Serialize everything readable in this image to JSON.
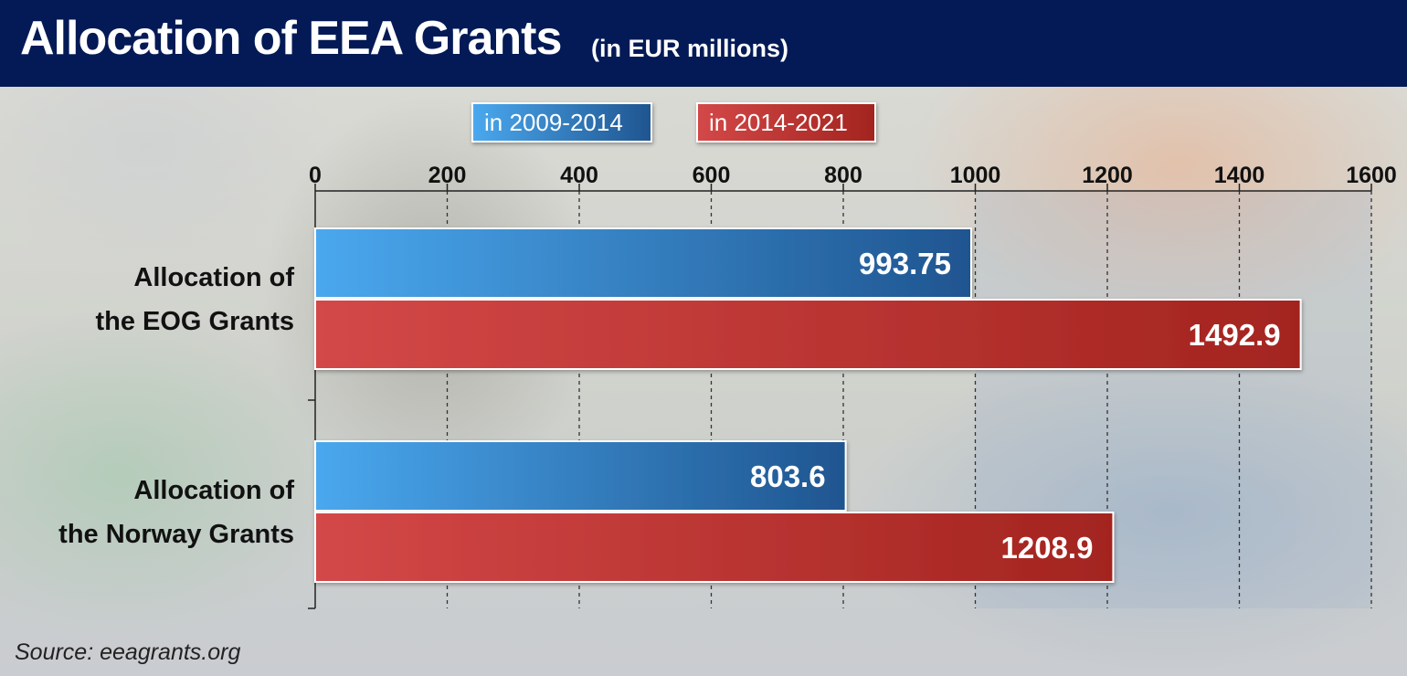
{
  "header": {
    "title": "Allocation of EEA Grants",
    "subtitle": "(in EUR millions)"
  },
  "source": "Source: eeagrants.org",
  "colors": {
    "header_bg": "#031a56",
    "series_2009_start": "#4aa8ee",
    "series_2009_end": "#1f5590",
    "series_2014_start": "#d34848",
    "series_2014_end": "#a3241f"
  },
  "chart_data": {
    "type": "bar",
    "orientation": "horizontal",
    "categories": [
      [
        "Allocation of",
        "the EOG Grants"
      ],
      [
        "Allocation of",
        "the Norway Grants"
      ]
    ],
    "series": [
      {
        "name": "in 2009-2014",
        "values": [
          993.75,
          803.6
        ],
        "value_labels": [
          "993.75",
          "803.6"
        ]
      },
      {
        "name": "in 2014-2021",
        "values": [
          1492.9,
          1208.9
        ],
        "value_labels": [
          "1492.9",
          "1208.9"
        ]
      }
    ],
    "xlim": [
      0,
      1600
    ],
    "ticks": [
      0,
      200,
      400,
      600,
      800,
      1000,
      1200,
      1400,
      1600
    ],
    "tick_labels": [
      "0",
      "200",
      "400",
      "600",
      "800",
      "1000",
      "1200",
      "1400",
      "1600"
    ],
    "axis_position": "top",
    "grid": "vertical dashed",
    "legend_position": "top"
  }
}
